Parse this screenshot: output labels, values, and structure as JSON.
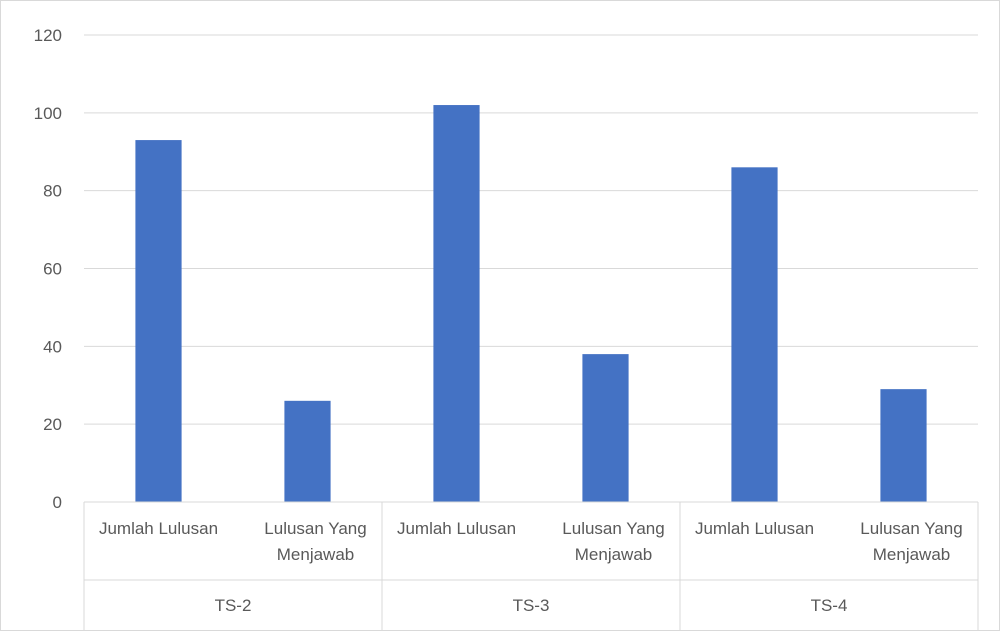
{
  "chart_data": {
    "type": "bar",
    "groups": [
      "TS-2",
      "TS-3",
      "TS-4"
    ],
    "categories": [
      {
        "group": "TS-2",
        "label": [
          "Jumlah Lulusan"
        ]
      },
      {
        "group": "TS-2",
        "label": [
          "Lulusan Yang",
          "Menjawab"
        ]
      },
      {
        "group": "TS-3",
        "label": [
          "Jumlah Lulusan"
        ]
      },
      {
        "group": "TS-3",
        "label": [
          "Lulusan Yang",
          "Menjawab"
        ]
      },
      {
        "group": "TS-4",
        "label": [
          "Jumlah Lulusan"
        ]
      },
      {
        "group": "TS-4",
        "label": [
          "Lulusan Yang",
          "Menjawab"
        ]
      }
    ],
    "values": [
      93,
      26,
      102,
      38,
      86,
      29
    ],
    "ylim": [
      0,
      120
    ],
    "yticks": [
      0,
      20,
      40,
      60,
      80,
      100,
      120
    ],
    "grid": true,
    "title": "",
    "xlabel": "",
    "ylabel": "",
    "bar_color": "#4472c4",
    "grid_color": "#d9d9d9",
    "text_color": "#595959"
  }
}
